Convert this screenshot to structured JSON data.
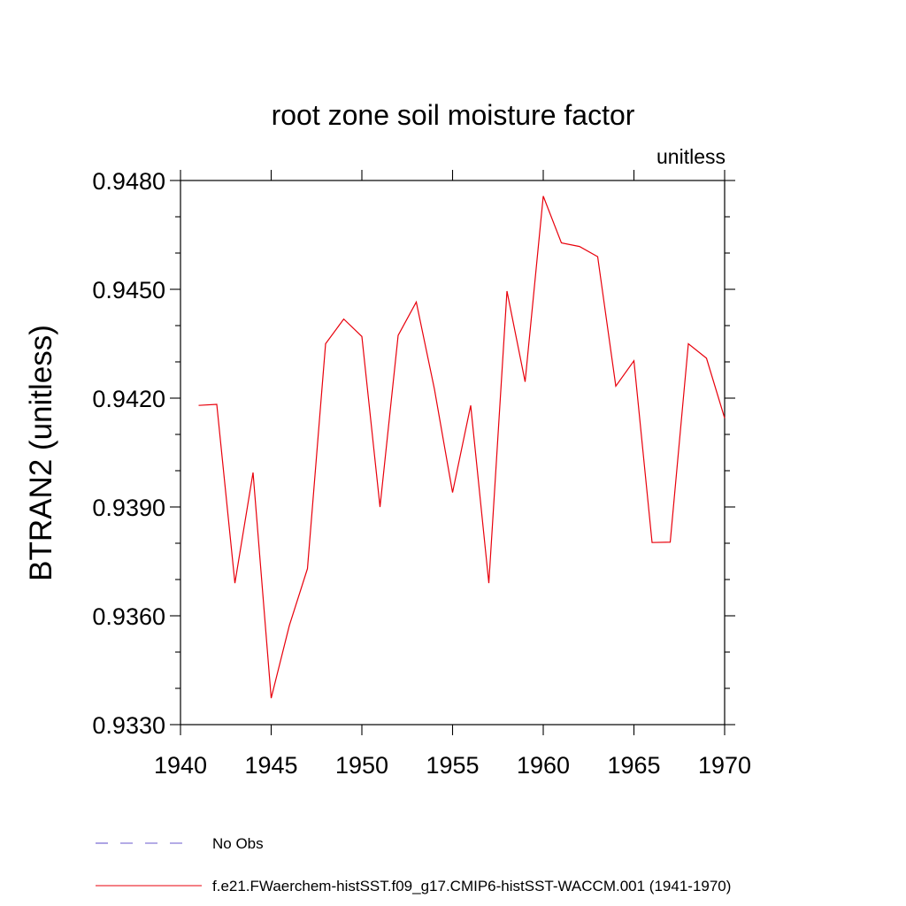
{
  "chart_data": {
    "type": "line",
    "title": "root zone soil moisture factor",
    "units_label": "unitless",
    "xlabel": "",
    "ylabel": "BTRAN2  (unitless)",
    "xlim": [
      1940,
      1970
    ],
    "ylim": [
      0.933,
      0.948
    ],
    "x_ticks": [
      1940,
      1945,
      1950,
      1955,
      1960,
      1965,
      1970
    ],
    "x_tick_labels": [
      "1940",
      "1945",
      "1950",
      "1955",
      "1960",
      "1965",
      "1970"
    ],
    "y_ticks": [
      0.933,
      0.936,
      0.939,
      0.942,
      0.945,
      0.948
    ],
    "y_tick_labels": [
      "0.9330",
      "0.9360",
      "0.9390",
      "0.9420",
      "0.9450",
      "0.9480"
    ],
    "grid": false,
    "legend_position": "bottom",
    "series": [
      {
        "name": "f.e21.FWaerchem-histSST.f09_g17.CMIP6-histSST-WACCM.001 (1941-1970)",
        "color": "#e8000b",
        "style": "solid",
        "x": [
          1941,
          1942,
          1943,
          1944,
          1945,
          1946,
          1947,
          1948,
          1949,
          1950,
          1951,
          1952,
          1953,
          1954,
          1955,
          1956,
          1957,
          1958,
          1959,
          1960,
          1961,
          1962,
          1963,
          1964,
          1965,
          1966,
          1967,
          1968,
          1969,
          1970
        ],
        "y": [
          0.9418,
          0.94183,
          0.9369,
          0.93995,
          0.93373,
          0.93573,
          0.9373,
          0.9435,
          0.94418,
          0.9437,
          0.939,
          0.94373,
          0.94465,
          0.94225,
          0.9394,
          0.9418,
          0.9369,
          0.94495,
          0.94245,
          0.94757,
          0.94628,
          0.94618,
          0.9459,
          0.94233,
          0.94303,
          0.93802,
          0.93803,
          0.9435,
          0.9431,
          0.94145
        ]
      },
      {
        "name": "No Obs",
        "color": "#6a5acd",
        "style": "dashed",
        "x": [],
        "y": []
      }
    ]
  }
}
